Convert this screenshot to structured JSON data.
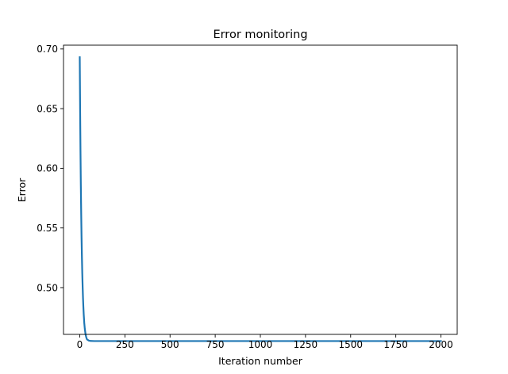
{
  "chart_data": {
    "type": "line",
    "title": "Error monitoring",
    "xlabel": "Iteration number",
    "ylabel": "Error",
    "xlim": [
      -90,
      2090
    ],
    "ylim": [
      0.4608,
      0.7032
    ],
    "xticks": [
      0,
      250,
      500,
      750,
      1000,
      1250,
      1500,
      1750,
      2000
    ],
    "xtick_labels": [
      "0",
      "250",
      "500",
      "750",
      "1000",
      "1250",
      "1500",
      "1750",
      "2000"
    ],
    "yticks": [
      0.5,
      0.55,
      0.6,
      0.65,
      0.7
    ],
    "ytick_labels": [
      "0.50",
      "0.55",
      "0.60",
      "0.65",
      "0.70"
    ],
    "grid": false,
    "line_color": "#1f77b4",
    "series": [
      {
        "x": [
          0,
          2,
          4,
          6,
          8,
          10,
          12,
          14,
          16,
          18,
          20,
          22,
          25,
          28,
          32,
          36,
          40,
          50,
          60,
          80,
          100,
          150,
          200,
          300,
          400,
          500,
          600,
          700,
          800,
          900,
          1000,
          1100,
          1200,
          1300,
          1400,
          1500,
          1600,
          1700,
          1800,
          1900,
          2000
        ],
        "values": [
          0.6931,
          0.6503,
          0.6149,
          0.5857,
          0.5617,
          0.5418,
          0.5254,
          0.5118,
          0.5007,
          0.4915,
          0.4839,
          0.4776,
          0.4703,
          0.4654,
          0.461,
          0.4583,
          0.4566,
          0.4556,
          0.4553,
          0.4552,
          0.4552,
          0.4552,
          0.4552,
          0.4552,
          0.4552,
          0.4552,
          0.4552,
          0.4552,
          0.4552,
          0.4552,
          0.4552,
          0.4552,
          0.4552,
          0.4552,
          0.4552,
          0.4552,
          0.4552,
          0.4552,
          0.4552,
          0.4552,
          0.4552
        ]
      }
    ]
  }
}
